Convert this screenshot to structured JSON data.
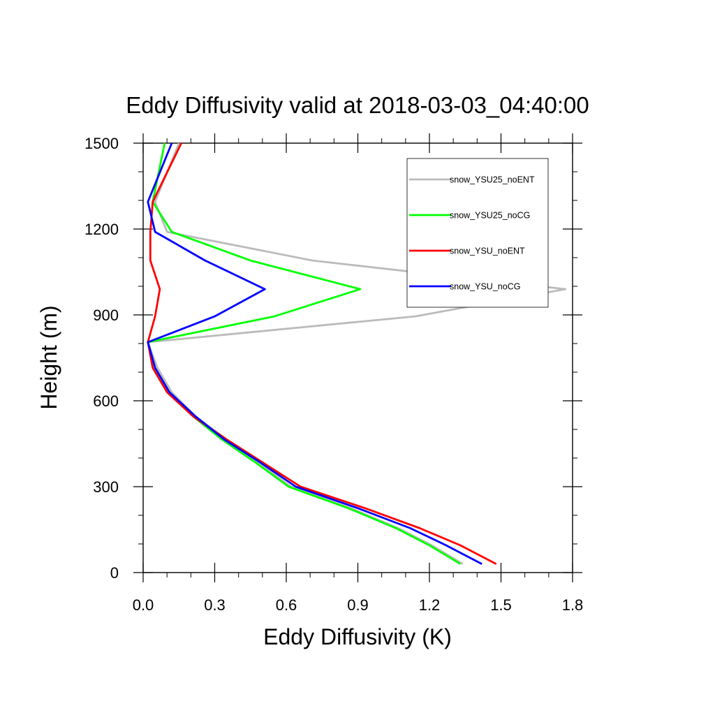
{
  "chart_data": {
    "type": "line",
    "title": "Eddy Diffusivity valid at 2018-03-03_04:40:00",
    "xlabel": "Eddy Diffusivity (K)",
    "ylabel": "Height (m)",
    "xlim": [
      0,
      1.8
    ],
    "ylim": [
      0,
      1500
    ],
    "x_ticks": [
      "0.0",
      "0.3",
      "0.6",
      "0.9",
      "1.2",
      "1.5",
      "1.8"
    ],
    "y_ticks": [
      "0",
      "300",
      "600",
      "900",
      "1200",
      "1500"
    ],
    "grid": false,
    "legend_position": "top-right",
    "heights": [
      30,
      95,
      155,
      225,
      300,
      385,
      465,
      545,
      630,
      715,
      805,
      895,
      990,
      1090,
      1190,
      1295,
      1500
    ],
    "series": [
      {
        "name": "snow_YSU25_noENT",
        "color": "#bbbbbb",
        "values": [
          1.34,
          1.21,
          1.07,
          0.87,
          0.62,
          0.48,
          0.35,
          0.22,
          0.12,
          0.06,
          0.02,
          1.14,
          1.77,
          0.71,
          0.1,
          0.05,
          0.15
        ]
      },
      {
        "name": "snow_YSU25_noCG",
        "color": "#00ff00",
        "values": [
          1.33,
          1.2,
          1.06,
          0.86,
          0.61,
          0.47,
          0.33,
          0.21,
          0.11,
          0.05,
          0.02,
          0.55,
          0.91,
          0.45,
          0.12,
          0.04,
          0.09
        ]
      },
      {
        "name": "snow_YSU_noENT",
        "color": "#ff0000",
        "values": [
          1.48,
          1.33,
          1.16,
          0.93,
          0.66,
          0.5,
          0.35,
          0.21,
          0.1,
          0.04,
          0.02,
          0.05,
          0.07,
          0.03,
          0.03,
          0.04,
          0.16
        ]
      },
      {
        "name": "snow_YSU_noCG",
        "color": "#0000ff",
        "values": [
          1.42,
          1.27,
          1.12,
          0.9,
          0.64,
          0.49,
          0.34,
          0.22,
          0.11,
          0.05,
          0.02,
          0.3,
          0.51,
          0.26,
          0.05,
          0.02,
          0.12
        ]
      }
    ]
  }
}
